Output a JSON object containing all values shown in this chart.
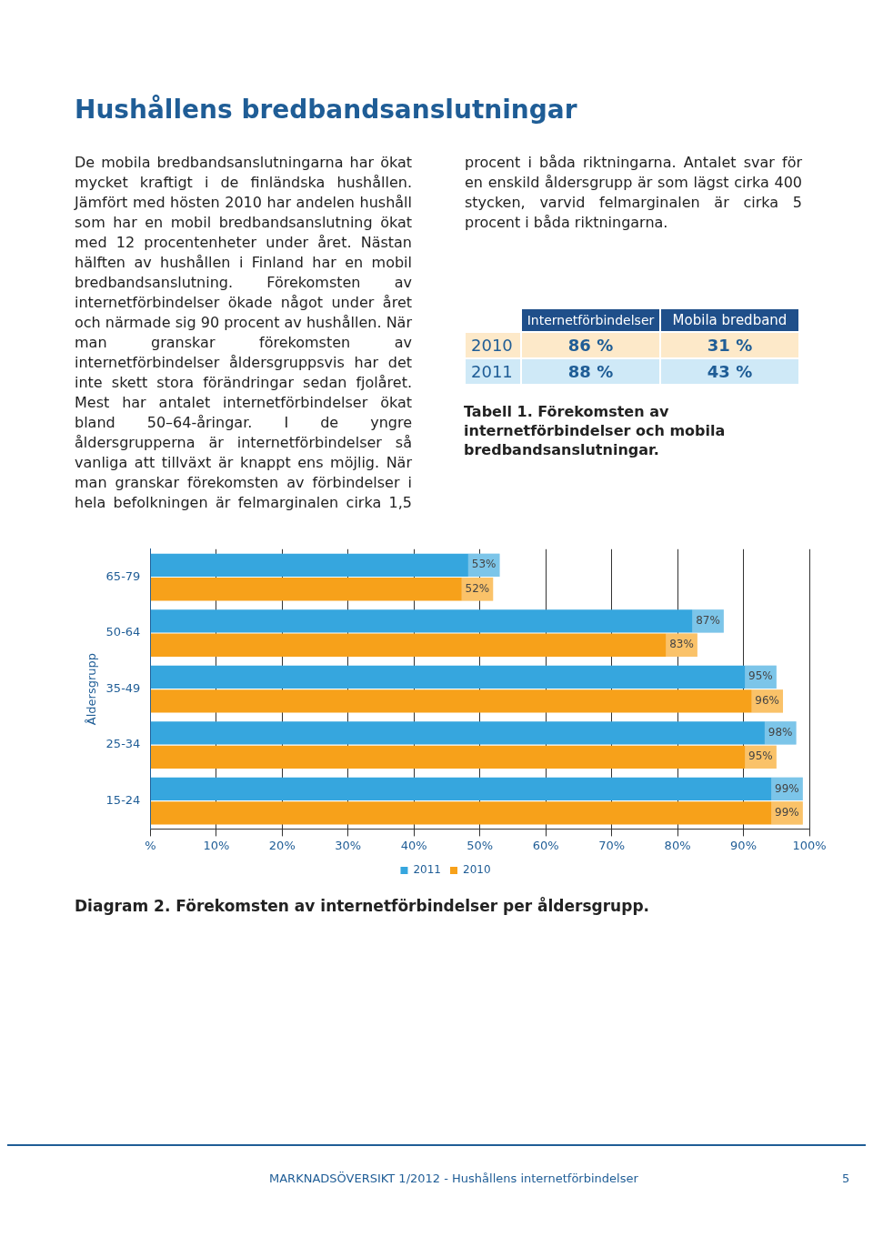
{
  "chart_data": {
    "type": "bar",
    "orientation": "horizontal",
    "title": "Hushållens bredbandsanslutningar",
    "annotations": [
      "De mobila bredbandsanslutningarna har ökat mycket kraftigt i de finländska hushållen. Jämfört med hösten 2010 har andelen hushåll som har en mobil bredbandsanslutning ökat med 12 procentenheter under året. Nästan hälften av hushållen i Finland har en mobil bredbandsanslutning. Förekomsten av internetförbindelser ökade något under året och närmade sig 90 procent av hushållen. När man granskar förekomsten av internetförbindelser åldersgruppsvis har det inte skett stora förändringar sedan fjolåret. Mest har antalet internetförbindelser ökat bland 50–64-åringar. I de yngre åldersgrupperna är internetförbindelser så vanliga att tillväxt är knappt ens möjlig. När man granskar förekomsten av förbindelser i hela befolkningen är felmarginalen cirka 1,5 procent i båda riktningarna. Antalet svar för en enskild åldersgrupp är som lägst cirka 400 stycken, varvid felmarginalen är cirka 5 procent i båda riktningarna.",
      "Internetförbindelser",
      "Mobila bredband",
      "2010",
      "86 %",
      "31 %",
      "2011",
      "88 %",
      "43 %",
      "Tabell 1. Förekomsten av internetförbindelser och mobila bredbandsanslutningar.",
      "Diagram 2. Förekomsten av internetförbindelser per åldersgrupp.",
      "MARKNADSÖVERSIKT 1/2012 - Hushållens internetförbindelser",
      "5"
    ],
    "ylabel": "Åldersgrupp",
    "categories": [
      "65-79",
      "50-64",
      "35-49",
      "25-34",
      "15-24"
    ],
    "series": [
      {
        "name": "2011",
        "color": "#36a6de",
        "values": [
          53,
          87,
          95,
          98,
          99
        ],
        "value_labels": [
          "53%",
          "87%",
          "95%",
          "98%",
          "99%"
        ]
      },
      {
        "name": "2010",
        "color": "#f7a11a",
        "values": [
          52,
          83,
          96,
          95,
          99
        ],
        "value_labels": [
          "52%",
          "83%",
          "96%",
          "95%",
          "99%"
        ]
      }
    ],
    "xlim": [
      0,
      100
    ],
    "xticks": [
      {
        "value": 0,
        "label": "%"
      },
      {
        "value": 10,
        "label": "10%"
      },
      {
        "value": 20,
        "label": "20%"
      },
      {
        "value": 30,
        "label": "30%"
      },
      {
        "value": 40,
        "label": "40%"
      },
      {
        "value": 50,
        "label": "50%"
      },
      {
        "value": 60,
        "label": "60%"
      },
      {
        "value": 70,
        "label": "70%"
      },
      {
        "value": 80,
        "label": "80%"
      },
      {
        "value": 90,
        "label": "90%"
      },
      {
        "value": 100,
        "label": "100%"
      }
    ],
    "grid": "x",
    "legend": "bottom"
  }
}
